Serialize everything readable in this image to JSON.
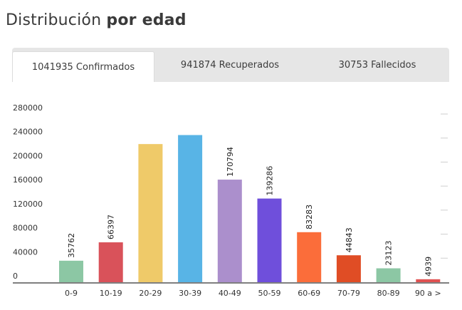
{
  "header": {
    "title_light": "Distribución",
    "title_bold": "por edad"
  },
  "tabs": [
    {
      "label": "1041935 Confirmados",
      "active": true
    },
    {
      "label": "941874 Recuperados",
      "active": false
    },
    {
      "label": "30753 Fallecidos",
      "active": false
    }
  ],
  "chart_data": {
    "type": "bar",
    "categories": [
      "0-9",
      "10-19",
      "20-29",
      "30-39",
      "40-49",
      "50-59",
      "60-69",
      "70-79",
      "80-89",
      "90 a >"
    ],
    "values": [
      35762,
      66397,
      230000,
      245000,
      170794,
      139286,
      83283,
      44843,
      23123,
      4939
    ],
    "data_labels": [
      "35762",
      "66397",
      "",
      "",
      "170794",
      "139286",
      "83283",
      "44843",
      "23123",
      "4939"
    ],
    "colors": [
      "#8cc7a4",
      "#d9525a",
      "#efca69",
      "#58b4e6",
      "#ab8fcc",
      "#6f4fdb",
      "#fb6d3a",
      "#e04d25",
      "#8cc7a4",
      "#e05252"
    ],
    "yticks": [
      "0",
      "40000",
      "80000",
      "120000",
      "160000",
      "200000",
      "240000",
      "280000"
    ],
    "ylim": [
      0,
      280000
    ],
    "grid": true,
    "axis_color": "#555555"
  }
}
